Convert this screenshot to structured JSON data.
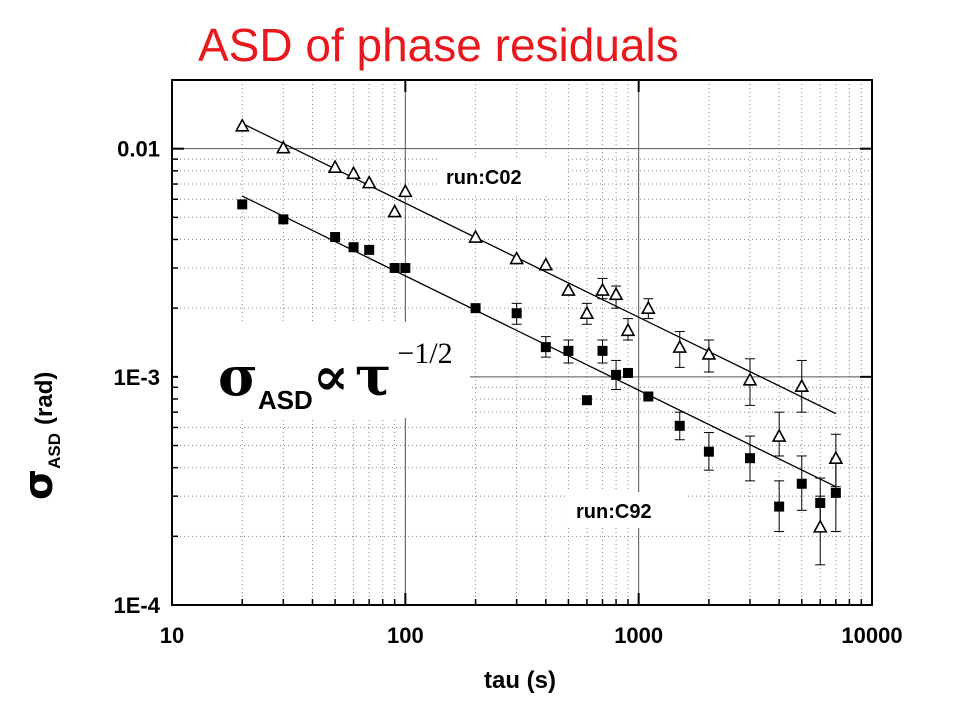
{
  "chart_data": {
    "type": "scatter",
    "title": "ASD of phase residuals",
    "xlabel": "tau (s)",
    "ylabel_symbol": "σ",
    "ylabel_sub": "ASD",
    "ylabel_unit": "(rad)",
    "xscale": "log",
    "yscale": "log",
    "xlim": [
      10,
      10000
    ],
    "ylim": [
      0.0001,
      0.02
    ],
    "x_ticks": [
      "10",
      "100",
      "1000",
      "10000"
    ],
    "y_ticks": [
      {
        "value": 0.01,
        "label": "0.01"
      },
      {
        "value": 0.001,
        "label": "1E-3"
      },
      {
        "value": 0.0001,
        "label": "1E-4"
      }
    ],
    "grid": true,
    "annotation": {
      "symbol": "σ",
      "sub": "ASD",
      "prop": "∝",
      "tau": "τ",
      "exponent": "−1/2"
    },
    "series": [
      {
        "name": "run:C02",
        "marker": "open-triangle",
        "points": [
          {
            "x": 20,
            "y": 0.0126
          },
          {
            "x": 30,
            "y": 0.0101
          },
          {
            "x": 50,
            "y": 0.0083
          },
          {
            "x": 60,
            "y": 0.0078
          },
          {
            "x": 70,
            "y": 0.0071
          },
          {
            "x": 90,
            "y": 0.0053
          },
          {
            "x": 100,
            "y": 0.0065
          },
          {
            "x": 200,
            "y": 0.0041
          },
          {
            "x": 300,
            "y": 0.0033
          },
          {
            "x": 400,
            "y": 0.0031
          },
          {
            "x": 500,
            "y": 0.0024
          },
          {
            "x": 600,
            "y": 0.0019,
            "err": [
              0.0017,
              0.0021
            ]
          },
          {
            "x": 700,
            "y": 0.0024,
            "err": [
              0.0022,
              0.0027
            ]
          },
          {
            "x": 800,
            "y": 0.0023,
            "err": [
              0.002,
              0.0025
            ]
          },
          {
            "x": 900,
            "y": 0.0016,
            "err": [
              0.00145,
              0.0018
            ]
          },
          {
            "x": 1100,
            "y": 0.002,
            "err": [
              0.0018,
              0.0022
            ]
          },
          {
            "x": 1500,
            "y": 0.00135,
            "err": [
              0.0011,
              0.00158
            ]
          },
          {
            "x": 2000,
            "y": 0.00126,
            "err": [
              0.00105,
              0.00145
            ]
          },
          {
            "x": 3000,
            "y": 0.00097,
            "err": [
              0.00075,
              0.0012
            ]
          },
          {
            "x": 4000,
            "y": 0.00055,
            "err": [
              0.00045,
              0.0007
            ]
          },
          {
            "x": 5000,
            "y": 0.00091,
            "err": [
              0.0007,
              0.00118
            ]
          },
          {
            "x": 6000,
            "y": 0.00022,
            "err": [
              0.00015,
              0.0003
            ]
          },
          {
            "x": 7000,
            "y": 0.00044,
            "err": [
              0.00033,
              0.00056
            ]
          }
        ],
        "fit": [
          {
            "x": 20,
            "y": 0.0129
          },
          {
            "x": 7000,
            "y": 0.00069
          }
        ]
      },
      {
        "name": "run:C92",
        "marker": "filled-square",
        "points": [
          {
            "x": 20,
            "y": 0.0057
          },
          {
            "x": 30,
            "y": 0.0049
          },
          {
            "x": 50,
            "y": 0.0041
          },
          {
            "x": 60,
            "y": 0.0037
          },
          {
            "x": 70,
            "y": 0.0036
          },
          {
            "x": 90,
            "y": 0.003
          },
          {
            "x": 100,
            "y": 0.003
          },
          {
            "x": 200,
            "y": 0.002
          },
          {
            "x": 300,
            "y": 0.0019,
            "err": [
              0.0017,
              0.0021
            ]
          },
          {
            "x": 400,
            "y": 0.00135,
            "err": [
              0.00122,
              0.0015
            ]
          },
          {
            "x": 500,
            "y": 0.0013,
            "err": [
              0.00115,
              0.00145
            ]
          },
          {
            "x": 600,
            "y": 0.00079
          },
          {
            "x": 700,
            "y": 0.0013,
            "err": [
              0.00115,
              0.00145
            ]
          },
          {
            "x": 800,
            "y": 0.00102,
            "err": [
              0.00088,
              0.00118
            ]
          },
          {
            "x": 900,
            "y": 0.00104
          },
          {
            "x": 1100,
            "y": 0.00082
          },
          {
            "x": 1500,
            "y": 0.00061,
            "err": [
              0.00053,
              0.0007
            ]
          },
          {
            "x": 2000,
            "y": 0.00047,
            "err": [
              0.00039,
              0.00057
            ]
          },
          {
            "x": 3000,
            "y": 0.00044,
            "err": [
              0.00035,
              0.00055
            ]
          },
          {
            "x": 4000,
            "y": 0.00027,
            "err": [
              0.00021,
              0.00035
            ]
          },
          {
            "x": 5000,
            "y": 0.00034,
            "err": [
              0.00026,
              0.00045
            ]
          },
          {
            "x": 6000,
            "y": 0.00028,
            "err": [
              0.00021,
              0.00036
            ]
          },
          {
            "x": 7000,
            "y": 0.00031,
            "err": [
              0.00021,
              0.00044
            ]
          }
        ],
        "fit": [
          {
            "x": 20,
            "y": 0.0062
          },
          {
            "x": 7000,
            "y": 0.00033
          }
        ]
      }
    ]
  }
}
